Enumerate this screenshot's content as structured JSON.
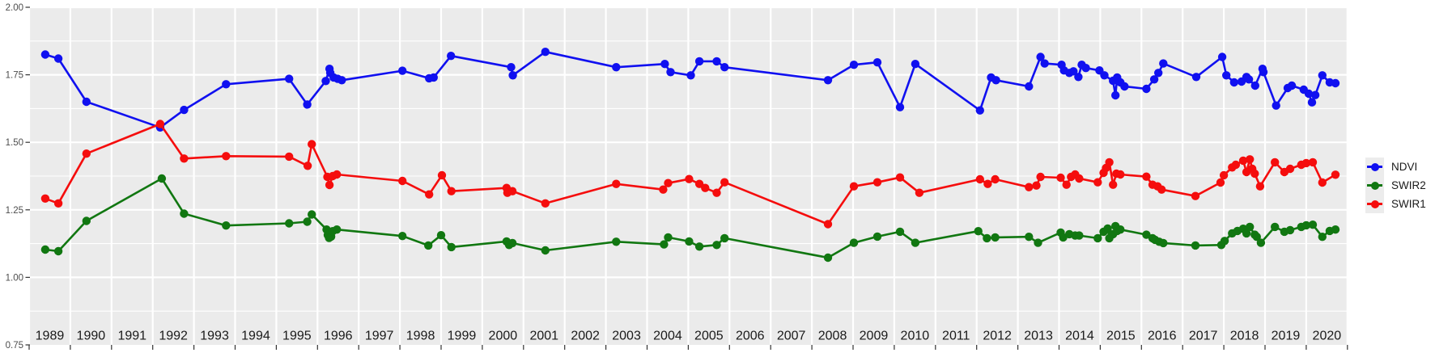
{
  "chart_data": {
    "type": "line",
    "title": "",
    "xlabel": "",
    "ylabel": "",
    "x_range": [
      1988.95,
      2021.0
    ],
    "y_range": [
      0.75,
      2.003
    ],
    "x_tick_labels": [
      "1989",
      "1990",
      "1991",
      "1992",
      "1993",
      "1994",
      "1995",
      "1996",
      "1997",
      "1998",
      "1999",
      "2000",
      "2001",
      "2002",
      "2003",
      "2004",
      "2005",
      "2006",
      "2007",
      "2008",
      "2009",
      "2010",
      "2011",
      "2012",
      "2013",
      "2014",
      "2015",
      "2016",
      "2017",
      "2018",
      "2019",
      "2020"
    ],
    "y_tick_labels": [
      "2.00",
      "1.75",
      "1.50",
      "1.25",
      "1.00",
      "0.75"
    ],
    "y_tick_values": [
      2.0,
      1.75,
      1.5,
      1.25,
      1.0,
      0.75
    ],
    "grid": "white major gridlines every 0.25 and minor every 0.125 on gray panel; vertical gridline at every year boundary",
    "legend_position": "right-center",
    "series": [
      {
        "name": "NDVI",
        "color": "#1010f0",
        "points": [
          [
            1989.39,
            1.825
          ],
          [
            1989.71,
            1.81
          ],
          [
            1990.39,
            1.65
          ],
          [
            1992.18,
            1.555
          ],
          [
            1992.76,
            1.62
          ],
          [
            1993.78,
            1.715
          ],
          [
            1995.31,
            1.735
          ],
          [
            1995.75,
            1.64
          ],
          [
            1996.2,
            1.727
          ],
          [
            1996.29,
            1.772
          ],
          [
            1996.31,
            1.757
          ],
          [
            1996.39,
            1.74
          ],
          [
            1996.49,
            1.735
          ],
          [
            1996.59,
            1.73
          ],
          [
            1998.06,
            1.765
          ],
          [
            1998.71,
            1.737
          ],
          [
            1998.82,
            1.74
          ],
          [
            1999.24,
            1.82
          ],
          [
            2000.7,
            1.778
          ],
          [
            2000.74,
            1.748
          ],
          [
            2001.53,
            1.835
          ],
          [
            2003.25,
            1.778
          ],
          [
            2004.43,
            1.79
          ],
          [
            2004.57,
            1.76
          ],
          [
            2005.06,
            1.748
          ],
          [
            2005.27,
            1.8
          ],
          [
            2005.69,
            1.8
          ],
          [
            2005.88,
            1.778
          ],
          [
            2008.39,
            1.73
          ],
          [
            2009.02,
            1.787
          ],
          [
            2009.59,
            1.796
          ],
          [
            2010.14,
            1.63
          ],
          [
            2010.51,
            1.79
          ],
          [
            2012.08,
            1.618
          ],
          [
            2012.35,
            1.74
          ],
          [
            2012.47,
            1.73
          ],
          [
            2013.27,
            1.707
          ],
          [
            2013.55,
            1.816
          ],
          [
            2013.65,
            1.792
          ],
          [
            2014.06,
            1.787
          ],
          [
            2014.12,
            1.766
          ],
          [
            2014.25,
            1.757
          ],
          [
            2014.35,
            1.763
          ],
          [
            2014.47,
            1.742
          ],
          [
            2014.55,
            1.787
          ],
          [
            2014.65,
            1.775
          ],
          [
            2014.98,
            1.766
          ],
          [
            2015.1,
            1.748
          ],
          [
            2015.31,
            1.728
          ],
          [
            2015.37,
            1.674
          ],
          [
            2015.41,
            1.74
          ],
          [
            2015.49,
            1.722
          ],
          [
            2015.59,
            1.707
          ],
          [
            2016.12,
            1.698
          ],
          [
            2016.31,
            1.733
          ],
          [
            2016.41,
            1.757
          ],
          [
            2016.53,
            1.792
          ],
          [
            2017.33,
            1.742
          ],
          [
            2017.96,
            1.816
          ],
          [
            2018.06,
            1.748
          ],
          [
            2018.25,
            1.722
          ],
          [
            2018.43,
            1.725
          ],
          [
            2018.55,
            1.742
          ],
          [
            2018.61,
            1.733
          ],
          [
            2018.76,
            1.71
          ],
          [
            2018.94,
            1.772
          ],
          [
            2018.96,
            1.76
          ],
          [
            2019.27,
            1.636
          ],
          [
            2019.55,
            1.701
          ],
          [
            2019.65,
            1.71
          ],
          [
            2019.94,
            1.695
          ],
          [
            2020.06,
            1.68
          ],
          [
            2020.14,
            1.648
          ],
          [
            2020.22,
            1.675
          ],
          [
            2020.39,
            1.748
          ],
          [
            2020.57,
            1.722
          ],
          [
            2020.71,
            1.719
          ]
        ]
      },
      {
        "name": "SWIR2",
        "color": "#117711",
        "points": [
          [
            1989.39,
            1.103
          ],
          [
            1989.71,
            1.097
          ],
          [
            1990.39,
            1.209
          ],
          [
            1992.22,
            1.366
          ],
          [
            1992.76,
            1.236
          ],
          [
            1993.78,
            1.192
          ],
          [
            1995.31,
            1.2
          ],
          [
            1995.75,
            1.206
          ],
          [
            1995.86,
            1.233
          ],
          [
            1996.22,
            1.177
          ],
          [
            1996.25,
            1.157
          ],
          [
            1996.28,
            1.146
          ],
          [
            1996.33,
            1.151
          ],
          [
            1996.37,
            1.171
          ],
          [
            1996.47,
            1.177
          ],
          [
            1998.06,
            1.153
          ],
          [
            1998.69,
            1.118
          ],
          [
            1999.0,
            1.156
          ],
          [
            1999.25,
            1.112
          ],
          [
            2000.59,
            1.133
          ],
          [
            2000.65,
            1.12
          ],
          [
            2000.73,
            1.127
          ],
          [
            2001.53,
            1.1
          ],
          [
            2003.25,
            1.132
          ],
          [
            2004.41,
            1.122
          ],
          [
            2004.51,
            1.148
          ],
          [
            2005.02,
            1.133
          ],
          [
            2005.27,
            1.114
          ],
          [
            2005.69,
            1.12
          ],
          [
            2005.88,
            1.145
          ],
          [
            2008.39,
            1.073
          ],
          [
            2009.02,
            1.128
          ],
          [
            2009.59,
            1.151
          ],
          [
            2010.14,
            1.169
          ],
          [
            2010.51,
            1.128
          ],
          [
            2012.04,
            1.171
          ],
          [
            2012.25,
            1.145
          ],
          [
            2012.45,
            1.148
          ],
          [
            2013.27,
            1.15
          ],
          [
            2013.49,
            1.128
          ],
          [
            2014.04,
            1.166
          ],
          [
            2014.1,
            1.148
          ],
          [
            2014.25,
            1.16
          ],
          [
            2014.39,
            1.155
          ],
          [
            2014.49,
            1.155
          ],
          [
            2014.94,
            1.145
          ],
          [
            2015.08,
            1.169
          ],
          [
            2015.18,
            1.181
          ],
          [
            2015.22,
            1.145
          ],
          [
            2015.31,
            1.16
          ],
          [
            2015.37,
            1.19
          ],
          [
            2015.41,
            1.172
          ],
          [
            2015.49,
            1.177
          ],
          [
            2016.12,
            1.158
          ],
          [
            2016.27,
            1.145
          ],
          [
            2016.33,
            1.139
          ],
          [
            2016.43,
            1.132
          ],
          [
            2016.53,
            1.127
          ],
          [
            2017.31,
            1.118
          ],
          [
            2017.94,
            1.12
          ],
          [
            2018.02,
            1.135
          ],
          [
            2018.2,
            1.163
          ],
          [
            2018.33,
            1.172
          ],
          [
            2018.47,
            1.18
          ],
          [
            2018.55,
            1.163
          ],
          [
            2018.63,
            1.187
          ],
          [
            2018.75,
            1.158
          ],
          [
            2018.8,
            1.15
          ],
          [
            2018.9,
            1.128
          ],
          [
            2019.24,
            1.187
          ],
          [
            2019.47,
            1.169
          ],
          [
            2019.61,
            1.175
          ],
          [
            2019.88,
            1.187
          ],
          [
            2020.0,
            1.193
          ],
          [
            2020.16,
            1.195
          ],
          [
            2020.39,
            1.15
          ],
          [
            2020.57,
            1.172
          ],
          [
            2020.71,
            1.177
          ]
        ]
      },
      {
        "name": "SWIR1",
        "color": "#f50d0d",
        "points": [
          [
            1989.39,
            1.292
          ],
          [
            1989.71,
            1.274
          ],
          [
            1990.39,
            1.458
          ],
          [
            1992.18,
            1.568
          ],
          [
            1992.76,
            1.44
          ],
          [
            1993.78,
            1.449
          ],
          [
            1995.31,
            1.447
          ],
          [
            1995.76,
            1.413
          ],
          [
            1995.86,
            1.493
          ],
          [
            1996.24,
            1.372
          ],
          [
            1996.29,
            1.342
          ],
          [
            1996.37,
            1.375
          ],
          [
            1996.47,
            1.381
          ],
          [
            1998.06,
            1.357
          ],
          [
            1998.71,
            1.307
          ],
          [
            1999.02,
            1.378
          ],
          [
            1999.25,
            1.319
          ],
          [
            2000.59,
            1.331
          ],
          [
            2000.61,
            1.313
          ],
          [
            2000.73,
            1.319
          ],
          [
            2001.53,
            1.274
          ],
          [
            2003.25,
            1.346
          ],
          [
            2004.39,
            1.325
          ],
          [
            2004.51,
            1.349
          ],
          [
            2005.02,
            1.364
          ],
          [
            2005.27,
            1.346
          ],
          [
            2005.41,
            1.331
          ],
          [
            2005.69,
            1.313
          ],
          [
            2005.88,
            1.352
          ],
          [
            2008.39,
            1.197
          ],
          [
            2009.02,
            1.337
          ],
          [
            2009.59,
            1.352
          ],
          [
            2010.14,
            1.37
          ],
          [
            2010.61,
            1.313
          ],
          [
            2012.08,
            1.363
          ],
          [
            2012.27,
            1.346
          ],
          [
            2012.45,
            1.363
          ],
          [
            2013.27,
            1.334
          ],
          [
            2013.45,
            1.34
          ],
          [
            2013.55,
            1.372
          ],
          [
            2014.04,
            1.369
          ],
          [
            2014.18,
            1.343
          ],
          [
            2014.29,
            1.372
          ],
          [
            2014.39,
            1.381
          ],
          [
            2014.49,
            1.366
          ],
          [
            2014.94,
            1.352
          ],
          [
            2015.08,
            1.387
          ],
          [
            2015.14,
            1.405
          ],
          [
            2015.22,
            1.426
          ],
          [
            2015.31,
            1.343
          ],
          [
            2015.39,
            1.384
          ],
          [
            2015.49,
            1.381
          ],
          [
            2016.12,
            1.373
          ],
          [
            2016.27,
            1.343
          ],
          [
            2016.39,
            1.337
          ],
          [
            2016.49,
            1.325
          ],
          [
            2017.31,
            1.301
          ],
          [
            2017.92,
            1.351
          ],
          [
            2018.0,
            1.378
          ],
          [
            2018.2,
            1.407
          ],
          [
            2018.29,
            1.417
          ],
          [
            2018.47,
            1.432
          ],
          [
            2018.55,
            1.39
          ],
          [
            2018.63,
            1.437
          ],
          [
            2018.69,
            1.402
          ],
          [
            2018.75,
            1.384
          ],
          [
            2018.88,
            1.337
          ],
          [
            2019.24,
            1.426
          ],
          [
            2019.47,
            1.39
          ],
          [
            2019.61,
            1.402
          ],
          [
            2019.88,
            1.417
          ],
          [
            2020.0,
            1.423
          ],
          [
            2020.16,
            1.426
          ],
          [
            2020.39,
            1.351
          ],
          [
            2020.71,
            1.38
          ]
        ]
      }
    ],
    "legend": [
      {
        "label": "NDVI",
        "color": "#1010f0"
      },
      {
        "label": "SWIR2",
        "color": "#117711"
      },
      {
        "label": "SWIR1",
        "color": "#f50d0d"
      }
    ],
    "style": {
      "panel_bg": "#ebebeb",
      "grid_color": "#ffffff",
      "tick_color": "#333333",
      "y_text_color": "#4d4d4d",
      "x_text_color": "#1a1a1a",
      "legend_key_bg": "#ececec",
      "background": "#ffffff"
    }
  }
}
